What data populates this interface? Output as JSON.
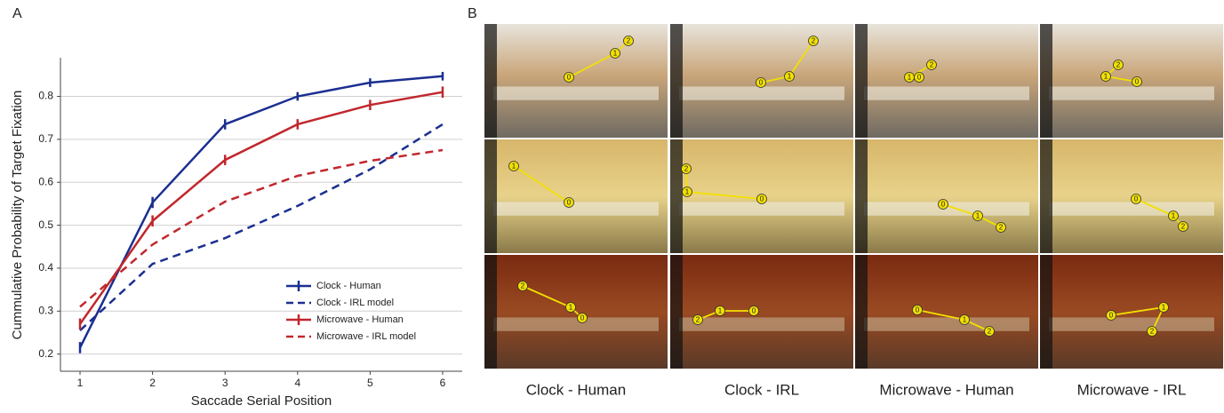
{
  "panel_labels": [
    "A",
    "B"
  ],
  "chart_data": {
    "type": "line",
    "x_label": "Saccade Serial Position",
    "y_label": "Cummulative Probability of Target Fixation",
    "x": [
      1,
      2,
      3,
      4,
      5,
      6
    ],
    "xlim": [
      0.73,
      6.27
    ],
    "xticks": [
      1,
      2,
      3,
      4,
      5,
      6
    ],
    "ylim": [
      0.16,
      0.89
    ],
    "yticks": [
      0.2,
      0.3,
      0.4,
      0.5,
      0.6,
      0.7,
      0.8
    ],
    "grid": true,
    "legend": "lower right",
    "series": [
      {
        "name": "Clock - Human",
        "color": "#1b2f91",
        "style": "solid",
        "values": [
          0.215,
          0.553,
          0.735,
          0.8,
          0.832,
          0.847
        ],
        "errors": [
          0.013,
          0.013,
          0.012,
          0.01,
          0.01,
          0.01
        ]
      },
      {
        "name": "Clock - IRL model",
        "color": "#1b2f91",
        "style": "dashed",
        "values": [
          0.255,
          0.41,
          0.47,
          0.545,
          0.63,
          0.735
        ]
      },
      {
        "name": "Microwave - Human",
        "color": "#c1272d",
        "style": "solid",
        "values": [
          0.27,
          0.51,
          0.652,
          0.735,
          0.78,
          0.81
        ],
        "errors": [
          0.013,
          0.013,
          0.012,
          0.012,
          0.012,
          0.013
        ]
      },
      {
        "name": "Microwave - IRL model",
        "color": "#c1272d",
        "style": "dashed",
        "values": [
          0.31,
          0.455,
          0.555,
          0.615,
          0.65,
          0.675
        ]
      }
    ]
  },
  "panel_b": {
    "columns": [
      "Clock - Human",
      "Clock - IRL",
      "Microwave - Human",
      "Microwave - IRL"
    ],
    "rows": [
      {
        "cells": [
          {
            "fixations": [
              "0",
              "1",
              "2"
            ]
          },
          {
            "fixations": [
              "0",
              "1",
              "2"
            ]
          },
          {
            "fixations": [
              "0",
              "1",
              "2"
            ]
          },
          {
            "fixations": [
              "0",
              "1",
              "2"
            ]
          }
        ]
      },
      {
        "cells": [
          {
            "fixations": [
              "0",
              "1"
            ]
          },
          {
            "fixations": [
              "0",
              "1",
              "2"
            ]
          },
          {
            "fixations": [
              "0",
              "1",
              "2"
            ]
          },
          {
            "fixations": [
              "0",
              "1",
              "2"
            ]
          }
        ]
      },
      {
        "cells": [
          {
            "fixations": [
              "0",
              "1",
              "2"
            ]
          },
          {
            "fixations": [
              "0",
              "1",
              "2"
            ]
          },
          {
            "fixations": [
              "0",
              "1",
              "2"
            ]
          },
          {
            "fixations": [
              "0",
              "1",
              "2"
            ]
          }
        ]
      }
    ]
  }
}
